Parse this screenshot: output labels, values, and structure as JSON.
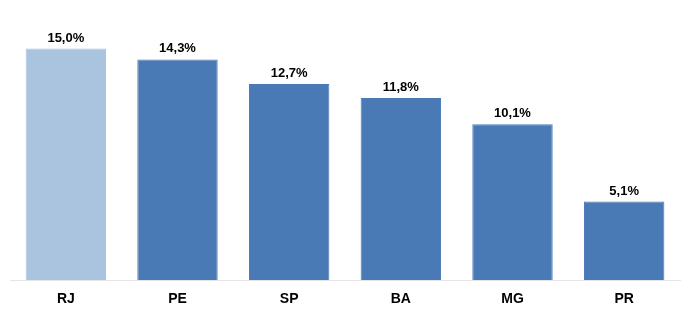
{
  "chart_data": {
    "type": "bar",
    "categories": [
      "RJ",
      "PE",
      "SP",
      "BA",
      "MG",
      "PR"
    ],
    "values": [
      15.0,
      14.3,
      12.7,
      11.8,
      10.1,
      5.1
    ],
    "value_labels": [
      "15,0%",
      "14,3%",
      "12,7%",
      "11,8%",
      "10,1%",
      "5,1%"
    ],
    "data_labels": true,
    "colors": [
      "#aac4e0",
      "#4a7ab5",
      "#4a7ab5",
      "#4a7ab5",
      "#4a7ab5",
      "#4a7ab5"
    ],
    "ylim": [
      0,
      17.5
    ],
    "grid": false,
    "tick_labels": "x"
  }
}
